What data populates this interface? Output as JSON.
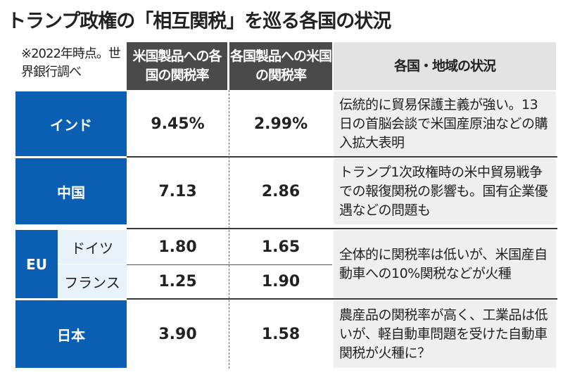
{
  "title": "トランプ政権の「相互関税」を巡る各国の状況",
  "note": "※2022年時点。世界銀行調べ",
  "headers": {
    "col2": "米国製品への各国の関税率",
    "col3": "各国製品への米国の関税率",
    "col4": "各国・地域の状況"
  },
  "colors": {
    "blue": "#0a5fb3",
    "header_dark": "#4a4a4a",
    "light_gray": "#efefef",
    "eu_sub": "#e8f2fb"
  },
  "rows": [
    {
      "country": "インド",
      "rate_on_us": "9.45%",
      "us_rate": "2.99%",
      "status": "伝統的に貿易保護主義が強い。13日の首脳会談で米国産原油などの購入拡大表明"
    },
    {
      "country": "中国",
      "rate_on_us": "7.13",
      "us_rate": "2.86",
      "status": "トランプ1次政権時の米中貿易戦争での報復関税の影響も。国有企業優遇などの問題も"
    },
    {
      "group": "EU",
      "country": "ドイツ",
      "rate_on_us": "1.80",
      "us_rate": "1.65",
      "status": "全体的に関税率は低いが、米国産自動車への10%関税などが火種"
    },
    {
      "country": "フランス",
      "rate_on_us": "1.25",
      "us_rate": "1.90"
    },
    {
      "country": "日本",
      "rate_on_us": "3.90",
      "us_rate": "1.58",
      "status": "農産品の関税率が高く、工業品は低いが、軽自動車問題を受けた自動車関税が火種に？"
    }
  ]
}
